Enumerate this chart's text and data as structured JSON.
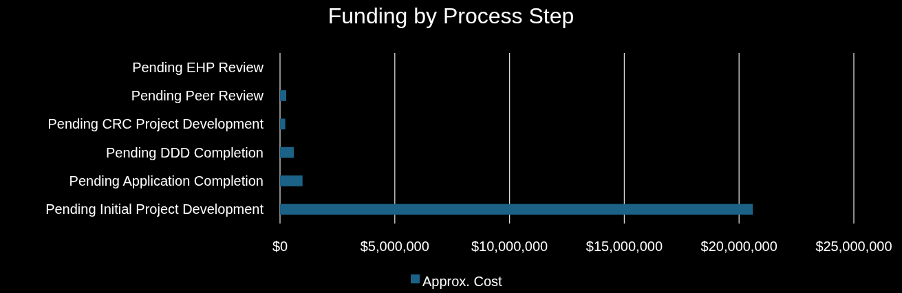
{
  "chart_data": {
    "type": "bar",
    "orientation": "horizontal",
    "title": "Funding by Process Step",
    "categories": [
      "Pending EHP Review",
      "Pending Peer Review",
      "Pending CRC Project Development",
      "Pending DDD Completion",
      "Pending Application Completion",
      "Pending Initial Project Development"
    ],
    "series": [
      {
        "name": "Approx. Cost",
        "color": "#1b6286",
        "values": [
          0,
          270000,
          230000,
          600000,
          980000,
          20600000
        ]
      }
    ],
    "xlim": [
      0,
      25000000
    ],
    "xticks": [
      {
        "value": 0,
        "label": "$0"
      },
      {
        "value": 5000000,
        "label": "$5,000,000"
      },
      {
        "value": 10000000,
        "label": "$10,000,000"
      },
      {
        "value": 15000000,
        "label": "$15,000,000"
      },
      {
        "value": 20000000,
        "label": "$20,000,000"
      },
      {
        "value": 25000000,
        "label": "$25,000,000"
      }
    ],
    "grid": "x",
    "legend": "bottom"
  }
}
